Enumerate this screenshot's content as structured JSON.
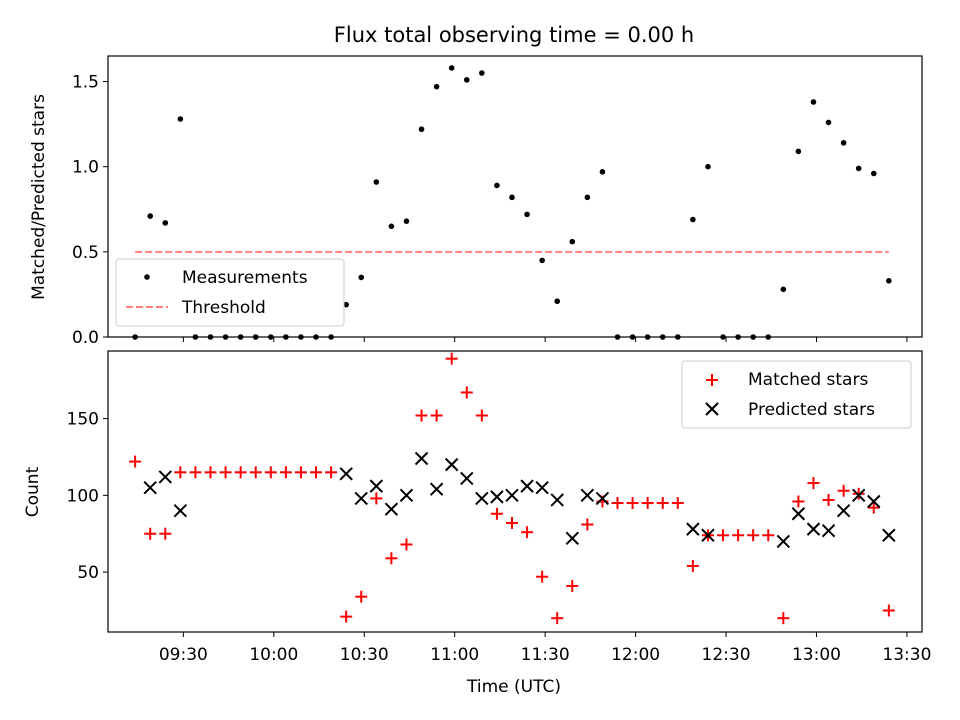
{
  "chart_data": [
    {
      "type": "scatter",
      "title": "Flux total observing time = 0.00 h",
      "ylabel": "Matched/Predicted stars",
      "xlabel": "",
      "xlim": [
        "09:05",
        "13:35"
      ],
      "ylim": [
        0,
        1.65
      ],
      "yticks": [
        0.0,
        0.5,
        1.0,
        1.5
      ],
      "ytick_labels": [
        "0.0",
        "0.5",
        "1.0",
        "1.5"
      ],
      "legend_position": "lower-left",
      "grid": false,
      "series": [
        {
          "name": "Measurements",
          "marker": "dot",
          "color": "#000000",
          "points": [
            [
              "09:14",
              0.0
            ],
            [
              "09:19",
              0.71
            ],
            [
              "09:24",
              0.67
            ],
            [
              "09:29",
              1.28
            ],
            [
              "09:34",
              0.0
            ],
            [
              "09:39",
              0.0
            ],
            [
              "09:44",
              0.0
            ],
            [
              "09:49",
              0.0
            ],
            [
              "09:54",
              0.0
            ],
            [
              "09:59",
              0.0
            ],
            [
              "10:04",
              0.0
            ],
            [
              "10:09",
              0.0
            ],
            [
              "10:14",
              0.0
            ],
            [
              "10:19",
              0.0
            ],
            [
              "10:24",
              0.19
            ],
            [
              "10:29",
              0.35
            ],
            [
              "10:34",
              0.91
            ],
            [
              "10:39",
              0.65
            ],
            [
              "10:44",
              0.68
            ],
            [
              "10:49",
              1.22
            ],
            [
              "10:54",
              1.47
            ],
            [
              "10:59",
              1.58
            ],
            [
              "11:04",
              1.51
            ],
            [
              "11:09",
              1.55
            ],
            [
              "11:14",
              0.89
            ],
            [
              "11:19",
              0.82
            ],
            [
              "11:24",
              0.72
            ],
            [
              "11:29",
              0.45
            ],
            [
              "11:34",
              0.21
            ],
            [
              "11:39",
              0.56
            ],
            [
              "11:44",
              0.82
            ],
            [
              "11:49",
              0.97
            ],
            [
              "11:54",
              0.0
            ],
            [
              "11:59",
              0.0
            ],
            [
              "12:04",
              0.0
            ],
            [
              "12:09",
              0.0
            ],
            [
              "12:14",
              0.0
            ],
            [
              "12:19",
              0.69
            ],
            [
              "12:24",
              1.0
            ],
            [
              "12:29",
              0.0
            ],
            [
              "12:34",
              0.0
            ],
            [
              "12:39",
              0.0
            ],
            [
              "12:44",
              0.0
            ],
            [
              "12:49",
              0.28
            ],
            [
              "12:54",
              1.09
            ],
            [
              "12:59",
              1.38
            ],
            [
              "13:04",
              1.26
            ],
            [
              "13:09",
              1.14
            ],
            [
              "13:14",
              0.99
            ],
            [
              "13:19",
              0.96
            ],
            [
              "13:24",
              0.33
            ]
          ]
        },
        {
          "name": "Threshold",
          "marker": "dashed-line",
          "color": "#ff7f7f",
          "points": [
            [
              "09:14",
              0.5
            ],
            [
              "13:24",
              0.5
            ]
          ]
        }
      ]
    },
    {
      "type": "scatter",
      "title": "",
      "ylabel": "Count",
      "xlabel": "Time (UTC)",
      "xlim": [
        "09:05",
        "13:35"
      ],
      "ylim": [
        11,
        194
      ],
      "yticks": [
        50,
        100,
        150
      ],
      "ytick_labels": [
        "50",
        "100",
        "150"
      ],
      "xticks": [
        "09:30",
        "10:00",
        "10:30",
        "11:00",
        "11:30",
        "12:00",
        "12:30",
        "13:00",
        "13:30"
      ],
      "legend_position": "top-right",
      "grid": false,
      "series": [
        {
          "name": "Matched stars",
          "marker": "plus",
          "color": "#ff0000",
          "points": [
            [
              "09:14",
              122
            ],
            [
              "09:19",
              75
            ],
            [
              "09:24",
              75
            ],
            [
              "09:29",
              115
            ],
            [
              "09:34",
              115
            ],
            [
              "09:39",
              115
            ],
            [
              "09:44",
              115
            ],
            [
              "09:49",
              115
            ],
            [
              "09:54",
              115
            ],
            [
              "09:59",
              115
            ],
            [
              "10:04",
              115
            ],
            [
              "10:09",
              115
            ],
            [
              "10:14",
              115
            ],
            [
              "10:19",
              115
            ],
            [
              "10:24",
              21
            ],
            [
              "10:29",
              34
            ],
            [
              "10:34",
              98
            ],
            [
              "10:39",
              59
            ],
            [
              "10:44",
              68
            ],
            [
              "10:49",
              152
            ],
            [
              "10:54",
              152
            ],
            [
              "10:59",
              189
            ],
            [
              "11:04",
              167
            ],
            [
              "11:09",
              152
            ],
            [
              "11:14",
              88
            ],
            [
              "11:19",
              82
            ],
            [
              "11:24",
              76
            ],
            [
              "11:29",
              47
            ],
            [
              "11:34",
              20
            ],
            [
              "11:39",
              41
            ],
            [
              "11:44",
              81
            ],
            [
              "11:49",
              96
            ],
            [
              "11:54",
              95
            ],
            [
              "11:59",
              95
            ],
            [
              "12:04",
              95
            ],
            [
              "12:09",
              95
            ],
            [
              "12:14",
              95
            ],
            [
              "12:19",
              54
            ],
            [
              "12:24",
              74
            ],
            [
              "12:29",
              74
            ],
            [
              "12:34",
              74
            ],
            [
              "12:39",
              74
            ],
            [
              "12:44",
              74
            ],
            [
              "12:49",
              20
            ],
            [
              "12:54",
              96
            ],
            [
              "12:59",
              108
            ],
            [
              "13:04",
              97
            ],
            [
              "13:09",
              103
            ],
            [
              "13:14",
              101
            ],
            [
              "13:19",
              92
            ],
            [
              "13:24",
              25
            ]
          ]
        },
        {
          "name": "Predicted stars",
          "marker": "x",
          "color": "#000000",
          "points": [
            [
              "09:19",
              105
            ],
            [
              "09:24",
              112
            ],
            [
              "09:29",
              90
            ],
            [
              "10:24",
              114
            ],
            [
              "10:29",
              98
            ],
            [
              "10:34",
              106
            ],
            [
              "10:39",
              91
            ],
            [
              "10:44",
              100
            ],
            [
              "10:49",
              124
            ],
            [
              "10:54",
              104
            ],
            [
              "10:59",
              120
            ],
            [
              "11:04",
              111
            ],
            [
              "11:09",
              98
            ],
            [
              "11:14",
              99
            ],
            [
              "11:19",
              100
            ],
            [
              "11:24",
              106
            ],
            [
              "11:29",
              105
            ],
            [
              "11:34",
              97
            ],
            [
              "11:39",
              72
            ],
            [
              "11:44",
              100
            ],
            [
              "11:49",
              98
            ],
            [
              "12:19",
              78
            ],
            [
              "12:24",
              74
            ],
            [
              "12:49",
              70
            ],
            [
              "12:54",
              88
            ],
            [
              "12:59",
              78
            ],
            [
              "13:04",
              77
            ],
            [
              "13:09",
              90
            ],
            [
              "13:14",
              100
            ],
            [
              "13:19",
              96
            ],
            [
              "13:24",
              74
            ]
          ]
        }
      ]
    }
  ]
}
